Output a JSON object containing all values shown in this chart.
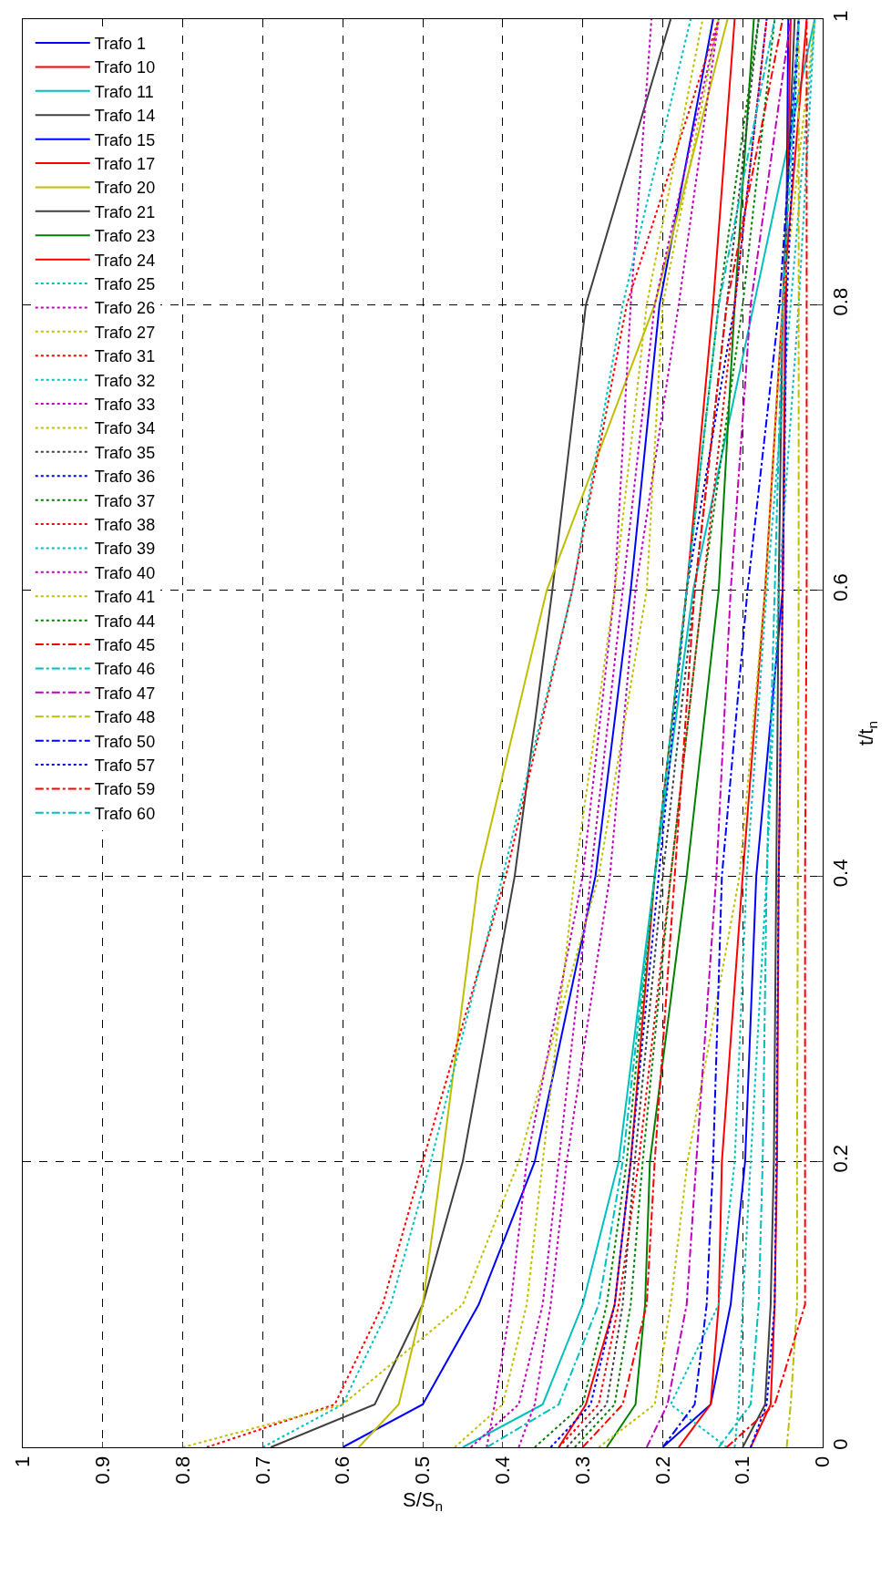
{
  "chart_data": {
    "type": "line",
    "xlabel": "S/S$_{n}$",
    "ylabel": "t/t$_{n}$",
    "xlim": [
      1,
      0
    ],
    "xticks": [
      0,
      0.1,
      0.2,
      0.3,
      0.4,
      0.5,
      0.6,
      0.7,
      0.8,
      0.9,
      1
    ],
    "ylim": [
      0,
      1
    ],
    "yticks": [
      0,
      0.2,
      0.4,
      0.6,
      0.8,
      1
    ],
    "grid": true,
    "legend": "top left",
    "marker": "none",
    "series": [
      {
        "name": "Trafo 1",
        "color": "#0000ff",
        "line_style": "solid",
        "x": [
          0.6,
          0.5,
          0.43,
          0.36,
          0.284,
          0.24,
          0.204,
          0.137
        ],
        "values": [
          0,
          0.03,
          0.1,
          0.2,
          0.4,
          0.6,
          0.8,
          1
        ]
      },
      {
        "name": "Trafo 10",
        "color": "#ff0000",
        "line_style": "solid",
        "x": [
          0.33,
          0.296,
          0.26,
          0.24,
          0.21,
          0.17,
          0.137,
          0.11
        ],
        "values": [
          0,
          0.03,
          0.1,
          0.2,
          0.4,
          0.6,
          0.8,
          1
        ]
      },
      {
        "name": "Trafo 11",
        "color": "#00bfbf",
        "line_style": "solid",
        "x": [
          0.45,
          0.35,
          0.3,
          0.255,
          0.21,
          0.162,
          0.086,
          0.01
        ],
        "values": [
          0,
          0.03,
          0.1,
          0.2,
          0.4,
          0.6,
          0.8,
          1
        ]
      },
      {
        "name": "Trafo 14",
        "color": "#404040",
        "line_style": "solid",
        "x": [
          0.69,
          0.56,
          0.5,
          0.45,
          0.385,
          0.338,
          0.296,
          0.19
        ],
        "values": [
          0,
          0.03,
          0.1,
          0.2,
          0.4,
          0.6,
          0.8,
          1
        ]
      },
      {
        "name": "Trafo 15",
        "color": "#0000ff",
        "line_style": "solid",
        "x": [
          0.2,
          0.14,
          0.115,
          0.097,
          0.083,
          0.05,
          0.046,
          0.043
        ],
        "values": [
          0,
          0.03,
          0.1,
          0.2,
          0.4,
          0.6,
          0.8,
          1
        ]
      },
      {
        "name": "Trafo 17",
        "color": "#ff0000",
        "line_style": "solid",
        "x": [
          0.09,
          0.065,
          0.06,
          0.057,
          0.055,
          0.05,
          0.047,
          0.04
        ],
        "values": [
          0,
          0.03,
          0.1,
          0.2,
          0.4,
          0.6,
          0.8,
          1
        ]
      },
      {
        "name": "Trafo 20",
        "color": "#bfbf00",
        "line_style": "solid",
        "x": [
          0.58,
          0.53,
          0.5,
          0.476,
          0.43,
          0.345,
          0.21,
          0.119
        ],
        "values": [
          0,
          0.03,
          0.1,
          0.2,
          0.4,
          0.6,
          0.8,
          1
        ]
      },
      {
        "name": "Trafo 21",
        "color": "#404040",
        "line_style": "solid",
        "x": [
          0.1,
          0.072,
          0.065,
          0.061,
          0.058,
          0.055,
          0.05,
          0.035
        ],
        "values": [
          0,
          0.03,
          0.1,
          0.2,
          0.4,
          0.6,
          0.8,
          1
        ]
      },
      {
        "name": "Trafo 23",
        "color": "#008000",
        "line_style": "solid",
        "x": [
          0.27,
          0.234,
          0.222,
          0.216,
          0.17,
          0.13,
          0.11,
          0.086
        ],
        "values": [
          0,
          0.03,
          0.1,
          0.2,
          0.4,
          0.6,
          0.8,
          1
        ]
      },
      {
        "name": "Trafo 24",
        "color": "#ff0000",
        "line_style": "solid",
        "x": [
          0.18,
          0.14,
          0.13,
          0.126,
          0.1,
          0.072,
          0.05,
          0.02
        ],
        "values": [
          0,
          0.03,
          0.1,
          0.2,
          0.4,
          0.6,
          0.8,
          1
        ]
      },
      {
        "name": "Trafo 25",
        "color": "#00bfbf",
        "line_style": "dotted",
        "x": [
          0.12,
          0.19,
          0.13,
          0.11,
          0.095,
          0.07,
          0.04,
          0.01
        ],
        "values": [
          0,
          0.03,
          0.1,
          0.2,
          0.4,
          0.6,
          0.8,
          1
        ]
      },
      {
        "name": "Trafo 26",
        "color": "#bf00bf",
        "line_style": "dotted",
        "x": [
          0.42,
          0.41,
          0.39,
          0.37,
          0.3,
          0.26,
          0.24,
          0.214
        ],
        "values": [
          0,
          0.03,
          0.1,
          0.2,
          0.4,
          0.6,
          0.8,
          1
        ]
      },
      {
        "name": "Trafo 27",
        "color": "#bfbf00",
        "line_style": "dotted",
        "x": [
          0.28,
          0.21,
          0.19,
          0.169,
          0.104,
          0.072,
          0.05,
          0.01
        ],
        "values": [
          0,
          0.03,
          0.1,
          0.2,
          0.4,
          0.6,
          0.8,
          1
        ]
      },
      {
        "name": "Trafo 31",
        "color": "#ff0000",
        "line_style": "dotted",
        "x": [
          0.77,
          0.61,
          0.55,
          0.5,
          0.396,
          0.313,
          0.245,
          0.13
        ],
        "values": [
          0,
          0.03,
          0.1,
          0.2,
          0.4,
          0.6,
          0.8,
          1
        ]
      },
      {
        "name": "Trafo 32",
        "color": "#00bfbf",
        "line_style": "dotted",
        "x": [
          0.7,
          0.6,
          0.54,
          0.49,
          0.4,
          0.313,
          0.25,
          0.165
        ],
        "values": [
          0,
          0.03,
          0.1,
          0.2,
          0.4,
          0.6,
          0.8,
          1
        ]
      },
      {
        "name": "Trafo 33",
        "color": "#bf00bf",
        "line_style": "dotted",
        "x": [
          0.38,
          0.36,
          0.34,
          0.32,
          0.266,
          0.234,
          0.18,
          0.13
        ],
        "values": [
          0,
          0.03,
          0.1,
          0.2,
          0.4,
          0.6,
          0.8,
          1
        ]
      },
      {
        "name": "Trafo 34",
        "color": "#bfbf00",
        "line_style": "dotted",
        "x": [
          0.8,
          0.6,
          0.45,
          0.38,
          0.28,
          0.22,
          0.2,
          0.13
        ],
        "values": [
          0,
          0.03,
          0.1,
          0.2,
          0.4,
          0.6,
          0.8,
          1
        ]
      },
      {
        "name": "Trafo 35",
        "color": "#404040",
        "line_style": "dotted",
        "x": [
          0.32,
          0.27,
          0.25,
          0.235,
          0.2,
          0.16,
          0.12,
          0.08
        ],
        "values": [
          0,
          0.03,
          0.1,
          0.2,
          0.4,
          0.6,
          0.8,
          1
        ]
      },
      {
        "name": "Trafo 36",
        "color": "#0000ff",
        "line_style": "dotted",
        "x": [
          0.34,
          0.29,
          0.26,
          0.24,
          0.205,
          0.17,
          0.11,
          0.07
        ],
        "values": [
          0,
          0.03,
          0.1,
          0.2,
          0.4,
          0.6,
          0.8,
          1
        ]
      },
      {
        "name": "Trafo 37",
        "color": "#008000",
        "line_style": "dotted",
        "x": [
          0.36,
          0.3,
          0.27,
          0.245,
          0.21,
          0.17,
          0.13,
          0.08
        ],
        "values": [
          0,
          0.03,
          0.1,
          0.2,
          0.4,
          0.6,
          0.8,
          1
        ]
      },
      {
        "name": "Trafo 38",
        "color": "#ff0000",
        "line_style": "dotted",
        "x": [
          0.33,
          0.28,
          0.255,
          0.23,
          0.19,
          0.15,
          0.11,
          0.07
        ],
        "values": [
          0,
          0.03,
          0.1,
          0.2,
          0.4,
          0.6,
          0.8,
          1
        ]
      },
      {
        "name": "Trafo 39",
        "color": "#00bfbf",
        "line_style": "dotted",
        "x": [
          0.11,
          0.105,
          0.1,
          0.09,
          0.07,
          0.055,
          0.03,
          0.01
        ],
        "values": [
          0,
          0.03,
          0.1,
          0.2,
          0.4,
          0.6,
          0.8,
          1
        ]
      },
      {
        "name": "Trafo 40",
        "color": "#bf00bf",
        "line_style": "dotted",
        "x": [
          0.44,
          0.38,
          0.35,
          0.33,
          0.29,
          0.25,
          0.21,
          0.13
        ],
        "values": [
          0,
          0.03,
          0.1,
          0.2,
          0.4,
          0.6,
          0.8,
          1
        ]
      },
      {
        "name": "Trafo 41",
        "color": "#bfbf00",
        "line_style": "dotted",
        "x": [
          0.46,
          0.4,
          0.37,
          0.35,
          0.31,
          0.26,
          0.22,
          0.15
        ],
        "values": [
          0,
          0.03,
          0.1,
          0.2,
          0.4,
          0.6,
          0.8,
          1
        ]
      },
      {
        "name": "Trafo 44",
        "color": "#008000",
        "line_style": "dotted",
        "x": [
          0.31,
          0.26,
          0.24,
          0.225,
          0.19,
          0.15,
          0.1,
          0.06
        ],
        "values": [
          0,
          0.03,
          0.1,
          0.2,
          0.4,
          0.6,
          0.8,
          1
        ]
      },
      {
        "name": "Trafo 45",
        "color": "#ff0000",
        "line_style": "dashdot",
        "x": [
          0.3,
          0.25,
          0.22,
          0.21,
          0.185,
          0.16,
          0.12,
          0.05
        ],
        "values": [
          0,
          0.03,
          0.1,
          0.2,
          0.4,
          0.6,
          0.8,
          1
        ]
      },
      {
        "name": "Trafo 46",
        "color": "#00bfbf",
        "line_style": "dashdot",
        "x": [
          0.42,
          0.33,
          0.28,
          0.25,
          0.21,
          0.17,
          0.13,
          0.06
        ],
        "values": [
          0,
          0.03,
          0.1,
          0.2,
          0.4,
          0.6,
          0.8,
          1
        ]
      },
      {
        "name": "Trafo 47",
        "color": "#bf00bf",
        "line_style": "dashdot",
        "x": [
          0.22,
          0.194,
          0.17,
          0.158,
          0.133,
          0.115,
          0.09,
          0.04
        ],
        "values": [
          0,
          0.03,
          0.1,
          0.2,
          0.4,
          0.6,
          0.8,
          1
        ]
      },
      {
        "name": "Trafo 48",
        "color": "#bfbf00",
        "line_style": "dashdot",
        "x": [
          0.045,
          0.04,
          0.032,
          0.032,
          0.031,
          0.03,
          0.03,
          0.03
        ],
        "values": [
          0,
          0.03,
          0.1,
          0.2,
          0.4,
          0.6,
          0.8,
          1
        ]
      },
      {
        "name": "Trafo 50",
        "color": "#0000ff",
        "line_style": "dashdot",
        "x": [
          0.2,
          0.16,
          0.145,
          0.137,
          0.126,
          0.094,
          0.054,
          0.03
        ],
        "values": [
          0,
          0.03,
          0.1,
          0.2,
          0.4,
          0.6,
          0.8,
          1
        ]
      },
      {
        "name": "Trafo 57",
        "color": "#0000ff",
        "line_style": "dotted",
        "x": [
          0.09,
          0.07,
          0.06,
          0.058,
          0.055,
          0.05,
          0.045,
          0.03
        ],
        "values": [
          0,
          0.03,
          0.1,
          0.2,
          0.4,
          0.6,
          0.8,
          1
        ]
      },
      {
        "name": "Trafo 59",
        "color": "#ff0000",
        "line_style": "dashdot",
        "x": [
          0.12,
          0.06,
          0.022,
          0.022,
          0.022,
          0.02,
          0.02,
          0.02
        ],
        "values": [
          0,
          0.03,
          0.1,
          0.2,
          0.4,
          0.6,
          0.8,
          1
        ]
      },
      {
        "name": "Trafo 60",
        "color": "#00bfbf",
        "line_style": "dashdot",
        "x": [
          0.13,
          0.09,
          0.08,
          0.075,
          0.07,
          0.06,
          0.05,
          0.03
        ],
        "values": [
          0,
          0.03,
          0.1,
          0.2,
          0.4,
          0.6,
          0.8,
          1
        ]
      }
    ]
  }
}
